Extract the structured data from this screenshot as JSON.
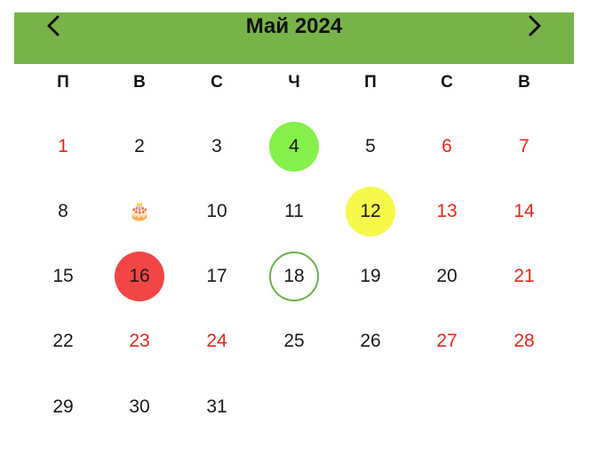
{
  "header": {
    "title": "Май 2024",
    "prev_icon": "chevron-left-icon",
    "next_icon": "chevron-right-icon",
    "background": "#78b34a"
  },
  "weekdays": [
    "П",
    "В",
    "С",
    "Ч",
    "П",
    "С",
    "В"
  ],
  "colors": {
    "holiday_text": "#e8261c",
    "green_marker": "#86f04a",
    "yellow_marker": "#f6f84a",
    "red_marker": "#f24545",
    "today_ring": "#6bb04a"
  },
  "weeks": [
    [
      {
        "label": "1",
        "style": "red"
      },
      {
        "label": "2",
        "style": "normal"
      },
      {
        "label": "3",
        "style": "normal"
      },
      {
        "label": "4",
        "style": "green-fill"
      },
      {
        "label": "5",
        "style": "normal"
      },
      {
        "label": "6",
        "style": "red"
      },
      {
        "label": "7",
        "style": "red"
      }
    ],
    [
      {
        "label": "8",
        "style": "normal"
      },
      {
        "label": "🎂",
        "style": "birthday",
        "icon": "birthday-cake-icon"
      },
      {
        "label": "10",
        "style": "normal"
      },
      {
        "label": "11",
        "style": "normal"
      },
      {
        "label": "12",
        "style": "yellow-fill"
      },
      {
        "label": "13",
        "style": "red"
      },
      {
        "label": "14",
        "style": "red"
      }
    ],
    [
      {
        "label": "15",
        "style": "normal"
      },
      {
        "label": "16",
        "style": "red-fill"
      },
      {
        "label": "17",
        "style": "normal"
      },
      {
        "label": "18",
        "style": "today"
      },
      {
        "label": "19",
        "style": "normal"
      },
      {
        "label": "20",
        "style": "normal"
      },
      {
        "label": "21",
        "style": "red"
      }
    ],
    [
      {
        "label": "22",
        "style": "normal"
      },
      {
        "label": "23",
        "style": "red"
      },
      {
        "label": "24",
        "style": "red"
      },
      {
        "label": "25",
        "style": "normal"
      },
      {
        "label": "26",
        "style": "normal"
      },
      {
        "label": "27",
        "style": "red"
      },
      {
        "label": "28",
        "style": "red"
      }
    ],
    [
      {
        "label": "29",
        "style": "normal"
      },
      {
        "label": "30",
        "style": "normal"
      },
      {
        "label": "31",
        "style": "normal"
      }
    ]
  ]
}
